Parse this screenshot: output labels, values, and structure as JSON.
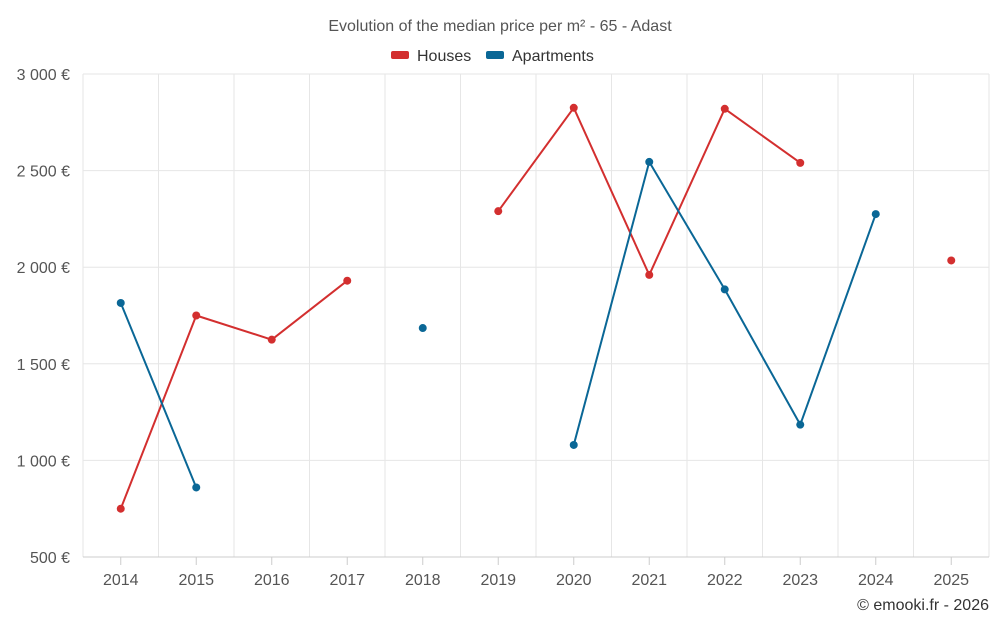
{
  "chart_data": {
    "type": "line",
    "title": "Evolution of the median price per m² - 65 - Adast",
    "categories": [
      "2014",
      "2015",
      "2016",
      "2017",
      "2018",
      "2019",
      "2020",
      "2021",
      "2022",
      "2023",
      "2024",
      "2025"
    ],
    "y_tick_labels": [
      "500 €",
      "1 000 €",
      "1 500 €",
      "2 000 €",
      "2 500 €",
      "3 000 €"
    ],
    "y_tick_values": [
      500,
      1000,
      1500,
      2000,
      2500,
      3000
    ],
    "ylim": [
      500,
      3000
    ],
    "grid": true,
    "legend_position": "top-center",
    "series": [
      {
        "name": "Houses",
        "color": "#d32f2f",
        "values": [
          750,
          1750,
          1625,
          1930,
          null,
          2290,
          2825,
          1960,
          2820,
          2540,
          null,
          2035
        ]
      },
      {
        "name": "Apartments",
        "color": "#0a6796",
        "values": [
          1815,
          860,
          null,
          null,
          1685,
          null,
          1080,
          2545,
          1885,
          1185,
          2275,
          null
        ]
      }
    ]
  },
  "credit": "© emooki.fr - 2026"
}
